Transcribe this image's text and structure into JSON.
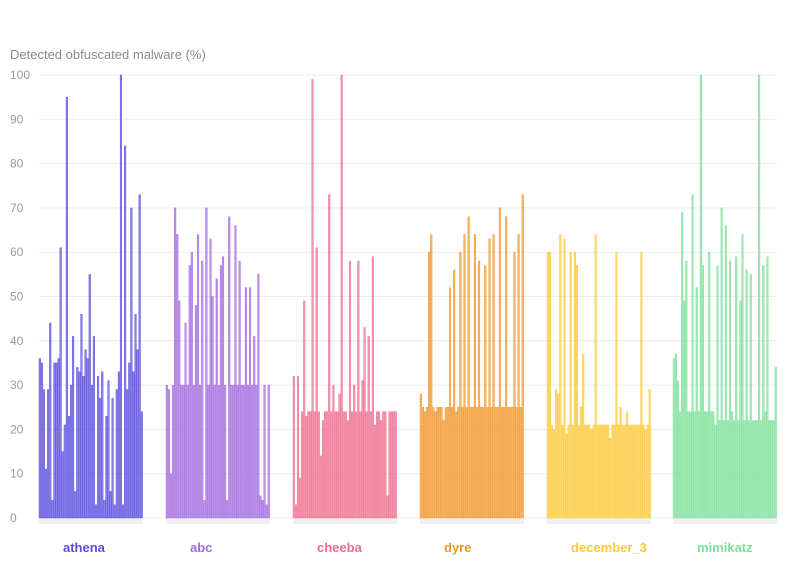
{
  "chart_data": {
    "type": "bar",
    "ylabel": "Detected obfuscated malware (%)",
    "ylim": [
      0,
      100
    ],
    "yticks": [
      0,
      10,
      20,
      30,
      40,
      50,
      60,
      70,
      80,
      90,
      100
    ],
    "grid": true,
    "series": [
      {
        "name": "athena",
        "color": "#5b4de0",
        "values": [
          36,
          35,
          29,
          11,
          29,
          44,
          4,
          35,
          35,
          36,
          61,
          15,
          21,
          95,
          23,
          30,
          41,
          6,
          34,
          33,
          46,
          32,
          38,
          36,
          55,
          30,
          41,
          3,
          32,
          27,
          33,
          4,
          23,
          31,
          6,
          27,
          3,
          29,
          33,
          100,
          3,
          84,
          29,
          35,
          70,
          33,
          46,
          38,
          73,
          24
        ]
      },
      {
        "name": "abc",
        "color": "#a36ae0",
        "values": [
          30,
          29,
          10,
          30,
          70,
          64,
          49,
          30,
          30,
          44,
          30,
          57,
          60,
          30,
          48,
          64,
          30,
          58,
          4,
          70,
          30,
          63,
          50,
          30,
          54,
          30,
          57,
          59,
          30,
          4,
          68,
          30,
          30,
          66,
          30,
          58,
          30,
          30,
          52,
          30,
          52,
          30,
          41,
          30,
          55,
          5,
          4,
          30,
          3,
          30
        ]
      },
      {
        "name": "cheeba",
        "color": "#ee6e8e",
        "values": [
          32,
          3,
          32,
          9,
          24,
          49,
          23,
          24,
          24,
          99,
          24,
          61,
          24,
          14,
          22,
          24,
          24,
          73,
          24,
          30,
          24,
          24,
          28,
          100,
          24,
          24,
          22,
          58,
          24,
          30,
          24,
          58,
          24,
          31,
          43,
          24,
          41,
          24,
          59,
          21,
          24,
          24,
          22,
          24,
          24,
          5,
          24,
          24,
          24,
          24
        ]
      },
      {
        "name": "dyre",
        "color": "#f0962a",
        "values": [
          28,
          25,
          24,
          25,
          60,
          64,
          25,
          24,
          25,
          25,
          25,
          22,
          25,
          25,
          52,
          25,
          56,
          24,
          25,
          60,
          25,
          64,
          25,
          68,
          25,
          25,
          64,
          25,
          58,
          25,
          25,
          57,
          25,
          63,
          25,
          64,
          25,
          25,
          70,
          25,
          25,
          68,
          25,
          25,
          25,
          60,
          25,
          64,
          25,
          73
        ]
      },
      {
        "name": "december_3",
        "color": "#fcc93a",
        "values": [
          60,
          60,
          21,
          20,
          29,
          28,
          64,
          21,
          63,
          19,
          21,
          60,
          21,
          60,
          57,
          21,
          25,
          37,
          21,
          21,
          21,
          20,
          21,
          64,
          21,
          21,
          21,
          21,
          21,
          21,
          18,
          21,
          21,
          60,
          21,
          25,
          21,
          21,
          24,
          21,
          21,
          21,
          21,
          21,
          21,
          60,
          21,
          20,
          21,
          29
        ]
      },
      {
        "name": "mimikatz",
        "color": "#7ee09a",
        "values": [
          36,
          37,
          31,
          24,
          69,
          49,
          58,
          24,
          24,
          73,
          24,
          52,
          24,
          100,
          57,
          24,
          24,
          60,
          24,
          24,
          21,
          57,
          22,
          70,
          22,
          66,
          22,
          58,
          24,
          22,
          59,
          22,
          49,
          64,
          22,
          56,
          22,
          55,
          22,
          22,
          22,
          100,
          22,
          57,
          24,
          59,
          22,
          22,
          22,
          34
        ]
      }
    ]
  }
}
